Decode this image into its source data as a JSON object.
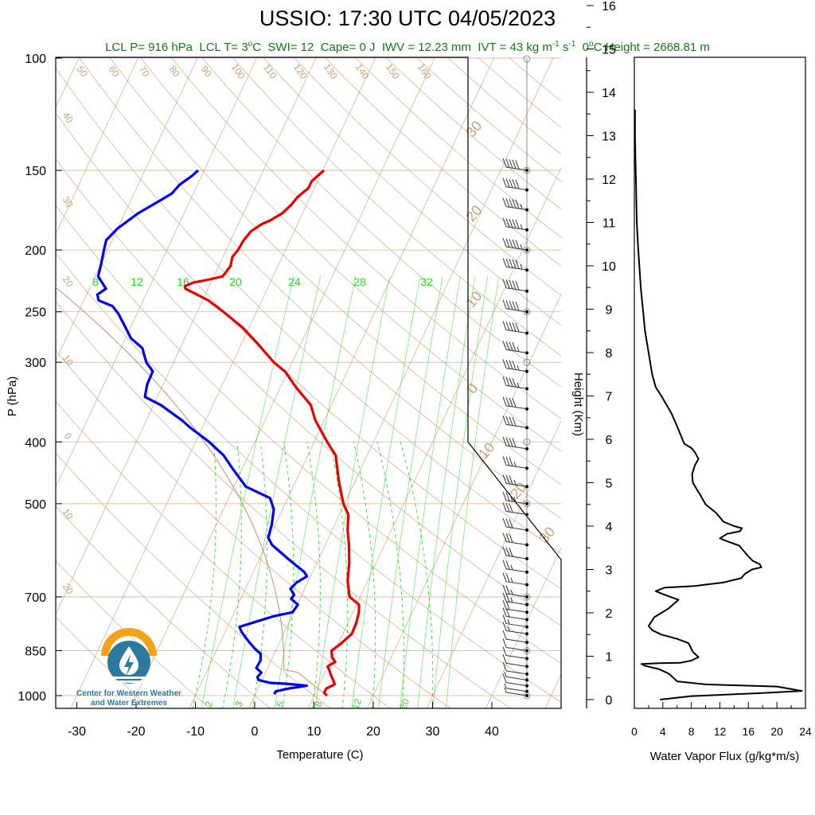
{
  "title": "USSIO: 17:30 UTC 04/05/2023",
  "subtitle": {
    "lcl_p": "LCL P= 916 hPa",
    "lcl_t": "LCL T= 3",
    "lcl_t_unit": "C",
    "swi": "SWI= 12",
    "cape": "Cape= 0 J",
    "iwv": "IWV = 12.23 mm",
    "ivt": "IVT = 43 kg m",
    "ivt_exp1": "-1",
    "ivt_s": " s",
    "ivt_exp2": "-1",
    "zero_height_prefix": "0",
    "zero_height": "C Height = 2668.81 m"
  },
  "logo": {
    "line1": "Center for Western Weather",
    "line2": "and Water Extremes"
  },
  "colors": {
    "temperature": "#e80000",
    "dewpoint": "#0000ee",
    "isotherm_dry": "#c8a078",
    "mixing_ratio": "#22dd22",
    "subtitle": "#117a11",
    "logo_orange": "#f5a21b",
    "logo_blue": "#2a7aa0"
  },
  "chart_data": [
    {
      "type": "line",
      "title": "USSIO: 17:30 UTC 04/05/2023",
      "xlabel": "Temperature (C)",
      "ylabel": "P (hPa)",
      "yscale": "log",
      "xlim": [
        -35,
        52
      ],
      "ylim": [
        1050,
        100
      ],
      "x_ticks": [
        "-30",
        "-20",
        "-10",
        "0",
        "10",
        "20",
        "30",
        "40"
      ],
      "y_ticks": [
        "100",
        "150",
        "200",
        "250",
        "300",
        "400",
        "500",
        "700",
        "850",
        "1000"
      ],
      "dry_adiabat_labels": [
        "50",
        "60",
        "70",
        "80",
        "90",
        "100",
        "110",
        "120",
        "130",
        "140",
        "150",
        "160",
        "40",
        "30",
        "20",
        "10",
        "0",
        "10",
        "20"
      ],
      "skew_isotherm_labels": [
        "30",
        "20",
        "10",
        "0",
        "10",
        "20",
        "30"
      ],
      "mixing_ratio_labels_top": [
        "8",
        "12",
        "16",
        "20",
        "24",
        "28",
        "32"
      ],
      "mixing_ratio_labels_bottom": [
        "2",
        "3",
        "5",
        "8",
        "12",
        "20"
      ],
      "series": [
        {
          "name": "Temperature",
          "points": [
            [
              12.2,
              1000
            ],
            [
              11.5,
              990
            ],
            [
              11.5,
              975
            ],
            [
              12.6,
              960
            ],
            [
              12.0,
              945
            ],
            [
              11.3,
              930
            ],
            [
              10.7,
              915
            ],
            [
              10.0,
              900
            ],
            [
              10.9,
              885
            ],
            [
              10.0,
              870
            ],
            [
              9.4,
              850
            ],
            [
              10.4,
              830
            ],
            [
              11.5,
              800
            ],
            [
              11.4,
              770
            ],
            [
              11.0,
              740
            ],
            [
              10.4,
              720
            ],
            [
              8.2,
              700
            ],
            [
              6.6,
              660
            ],
            [
              5.5,
              620
            ],
            [
              4.0,
              580
            ],
            [
              2.6,
              550
            ],
            [
              1.5,
              520
            ],
            [
              -0.2,
              500
            ],
            [
              -2.8,
              460
            ],
            [
              -5.3,
              420
            ],
            [
              -7.8,
              400
            ],
            [
              -11.5,
              370
            ],
            [
              -13.5,
              350
            ],
            [
              -17.1,
              330
            ],
            [
              -20.5,
              310
            ],
            [
              -23.1,
              300
            ],
            [
              -27.4,
              280
            ],
            [
              -31.0,
              265
            ],
            [
              -35.6,
              250
            ],
            [
              -39.0,
              240
            ],
            [
              -43.8,
              230
            ],
            [
              -44.1,
              228
            ],
            [
              -43.0,
              225
            ],
            [
              -41.0,
              223
            ],
            [
              -38.5,
              220
            ],
            [
              -38.0,
              212
            ],
            [
              -38.4,
              205
            ],
            [
              -38.0,
              200
            ],
            [
              -37.8,
              193
            ],
            [
              -37.3,
              187
            ],
            [
              -36.0,
              182
            ],
            [
              -35.0,
              180
            ],
            [
              -33.4,
              175
            ],
            [
              -32.6,
              170
            ],
            [
              -32.1,
              165
            ],
            [
              -31.0,
              160
            ],
            [
              -31.0,
              156
            ],
            [
              -29.8,
              150
            ]
          ]
        },
        {
          "name": "Dewpoint",
          "points": [
            [
              3.2,
              995
            ],
            [
              3.2,
              985
            ],
            [
              5.1,
              975
            ],
            [
              8.0,
              965
            ],
            [
              4.4,
              958
            ],
            [
              1.6,
              955
            ],
            [
              -0.6,
              945
            ],
            [
              -1.0,
              935
            ],
            [
              -0.7,
              920
            ],
            [
              -1.9,
              905
            ],
            [
              -1.8,
              880
            ],
            [
              -2.3,
              860
            ],
            [
              -3.6,
              845
            ],
            [
              -5.1,
              825
            ],
            [
              -7.2,
              795
            ],
            [
              -8.0,
              780
            ],
            [
              -5.5,
              765
            ],
            [
              -2.9,
              750
            ],
            [
              -0.2,
              740
            ],
            [
              0.1,
              720
            ],
            [
              -1.5,
              705
            ],
            [
              -1.3,
              695
            ],
            [
              -2.4,
              680
            ],
            [
              -1.9,
              665
            ],
            [
              -0.6,
              650
            ],
            [
              -1.4,
              640
            ],
            [
              -5.2,
              610
            ],
            [
              -9.0,
              580
            ],
            [
              -10.2,
              565
            ],
            [
              -10.6,
              540
            ],
            [
              -11.5,
              510
            ],
            [
              -13.0,
              490
            ],
            [
              -18.0,
              470
            ],
            [
              -21.7,
              440
            ],
            [
              -24.2,
              420
            ],
            [
              -27.7,
              400
            ],
            [
              -32.0,
              380
            ],
            [
              -34.0,
              370
            ],
            [
              -38.8,
              350
            ],
            [
              -42.1,
              340
            ],
            [
              -42.7,
              325
            ],
            [
              -42.8,
              310
            ],
            [
              -44.6,
              300
            ],
            [
              -46.4,
              285
            ],
            [
              -49.1,
              275
            ],
            [
              -51.3,
              262
            ],
            [
              -53.1,
              252
            ],
            [
              -54.7,
              245
            ],
            [
              -57.5,
              240
            ],
            [
              -58.2,
              235
            ],
            [
              -57.2,
              230
            ],
            [
              -59.5,
              220
            ],
            [
              -60.0,
              210
            ],
            [
              -60.6,
              200
            ],
            [
              -61.0,
              193
            ],
            [
              -60.0,
              185
            ],
            [
              -57.7,
              175
            ],
            [
              -55.3,
              168
            ],
            [
              -53.6,
              163
            ],
            [
              -53.0,
              158
            ],
            [
              -51.6,
              153
            ],
            [
              -51.0,
              150
            ]
          ]
        }
      ],
      "wind_barbs": [
        {
          "p": 1000,
          "speed": 5
        },
        {
          "p": 985,
          "speed": 5
        },
        {
          "p": 965,
          "speed": 10
        },
        {
          "p": 945,
          "speed": 5
        },
        {
          "p": 925,
          "speed": 10
        },
        {
          "p": 900,
          "speed": 10
        },
        {
          "p": 875,
          "speed": 10
        },
        {
          "p": 850,
          "speed": 10
        },
        {
          "p": 825,
          "speed": 10
        },
        {
          "p": 800,
          "speed": 15
        },
        {
          "p": 780,
          "speed": 15
        },
        {
          "p": 760,
          "speed": 20
        },
        {
          "p": 740,
          "speed": 20
        },
        {
          "p": 720,
          "speed": 25
        },
        {
          "p": 700,
          "speed": 25
        },
        {
          "p": 670,
          "speed": 25
        },
        {
          "p": 640,
          "speed": 25
        },
        {
          "p": 610,
          "speed": 30
        },
        {
          "p": 580,
          "speed": 30
        },
        {
          "p": 550,
          "speed": 30
        },
        {
          "p": 520,
          "speed": 30
        },
        {
          "p": 500,
          "speed": 35
        },
        {
          "p": 470,
          "speed": 35
        },
        {
          "p": 440,
          "speed": 35
        },
        {
          "p": 410,
          "speed": 40
        },
        {
          "p": 380,
          "speed": 40
        },
        {
          "p": 355,
          "speed": 40
        },
        {
          "p": 330,
          "speed": 45
        },
        {
          "p": 310,
          "speed": 45
        },
        {
          "p": 290,
          "speed": 45
        },
        {
          "p": 270,
          "speed": 50
        },
        {
          "p": 250,
          "speed": 50
        },
        {
          "p": 232,
          "speed": 50
        },
        {
          "p": 215,
          "speed": 55
        },
        {
          "p": 200,
          "speed": 55
        },
        {
          "p": 186,
          "speed": 55
        },
        {
          "p": 173,
          "speed": 55
        },
        {
          "p": 161,
          "speed": 50
        },
        {
          "p": 150,
          "speed": 50
        }
      ]
    },
    {
      "type": "line",
      "xlabel": "Water Vapor Flux (g/kg*m/s)",
      "ylabel": "Height (Km)",
      "xlim": [
        0,
        24
      ],
      "ylim": [
        -0.3,
        16.5
      ],
      "x_ticks": [
        "0",
        "4",
        "8",
        "12",
        "16",
        "20",
        "24"
      ],
      "x_minor_ticks": [
        "2",
        "6",
        "10",
        "14",
        "18",
        "22"
      ],
      "y_ticks": [
        "0",
        "1",
        "2",
        "3",
        "4",
        "5",
        "6",
        "7",
        "8",
        "9",
        "10",
        "11",
        "12",
        "13",
        "14",
        "15",
        "16"
      ],
      "series": [
        {
          "points": [
            [
              3.6,
              0.0
            ],
            [
              8.0,
              0.08
            ],
            [
              18.0,
              0.15
            ],
            [
              23.5,
              0.2
            ],
            [
              20.0,
              0.3
            ],
            [
              10.0,
              0.35
            ],
            [
              6.0,
              0.42
            ],
            [
              5.5,
              0.5
            ],
            [
              4.8,
              0.6
            ],
            [
              3.5,
              0.7
            ],
            [
              1.5,
              0.78
            ],
            [
              1.0,
              0.82
            ],
            [
              3.5,
              0.84
            ],
            [
              6.5,
              0.85
            ],
            [
              8.0,
              0.9
            ],
            [
              9.0,
              0.98
            ],
            [
              8.2,
              1.1
            ],
            [
              7.6,
              1.3
            ],
            [
              6.0,
              1.4
            ],
            [
              3.8,
              1.5
            ],
            [
              2.5,
              1.6
            ],
            [
              2.0,
              1.7
            ],
            [
              2.8,
              1.9
            ],
            [
              4.8,
              2.1
            ],
            [
              6.2,
              2.3
            ],
            [
              4.5,
              2.4
            ],
            [
              3.0,
              2.5
            ],
            [
              4.2,
              2.58
            ],
            [
              8.5,
              2.62
            ],
            [
              12.5,
              2.7
            ],
            [
              15.0,
              2.8
            ],
            [
              15.5,
              2.9
            ],
            [
              16.5,
              3.0
            ],
            [
              17.8,
              3.05
            ],
            [
              17.6,
              3.12
            ],
            [
              16.6,
              3.2
            ],
            [
              16.0,
              3.3
            ],
            [
              14.7,
              3.55
            ],
            [
              13.0,
              3.65
            ],
            [
              12.0,
              3.72
            ],
            [
              13.0,
              3.82
            ],
            [
              14.8,
              3.88
            ],
            [
              15.1,
              3.95
            ],
            [
              14.0,
              4.0
            ],
            [
              12.5,
              4.1
            ],
            [
              11.5,
              4.3
            ],
            [
              10.0,
              4.5
            ],
            [
              9.3,
              4.7
            ],
            [
              8.2,
              5.0
            ],
            [
              8.1,
              5.2
            ],
            [
              8.5,
              5.4
            ],
            [
              9.0,
              5.55
            ],
            [
              8.5,
              5.7
            ],
            [
              8.0,
              5.8
            ],
            [
              7.0,
              5.9
            ],
            [
              6.5,
              6.1
            ],
            [
              6.0,
              6.3
            ],
            [
              5.2,
              6.6
            ],
            [
              4.5,
              6.8
            ],
            [
              3.8,
              7.0
            ],
            [
              3.0,
              7.2
            ],
            [
              2.5,
              7.5
            ],
            [
              2.0,
              8.0
            ],
            [
              1.5,
              8.5
            ],
            [
              1.2,
              9.0
            ],
            [
              0.9,
              9.5
            ],
            [
              0.7,
              10.0
            ],
            [
              0.5,
              10.5
            ],
            [
              0.35,
              11.0
            ],
            [
              0.28,
              11.5
            ],
            [
              0.22,
              12.0
            ],
            [
              0.15,
              12.5
            ],
            [
              0.1,
              13.0
            ],
            [
              0.1,
              13.6
            ]
          ]
        }
      ]
    }
  ]
}
